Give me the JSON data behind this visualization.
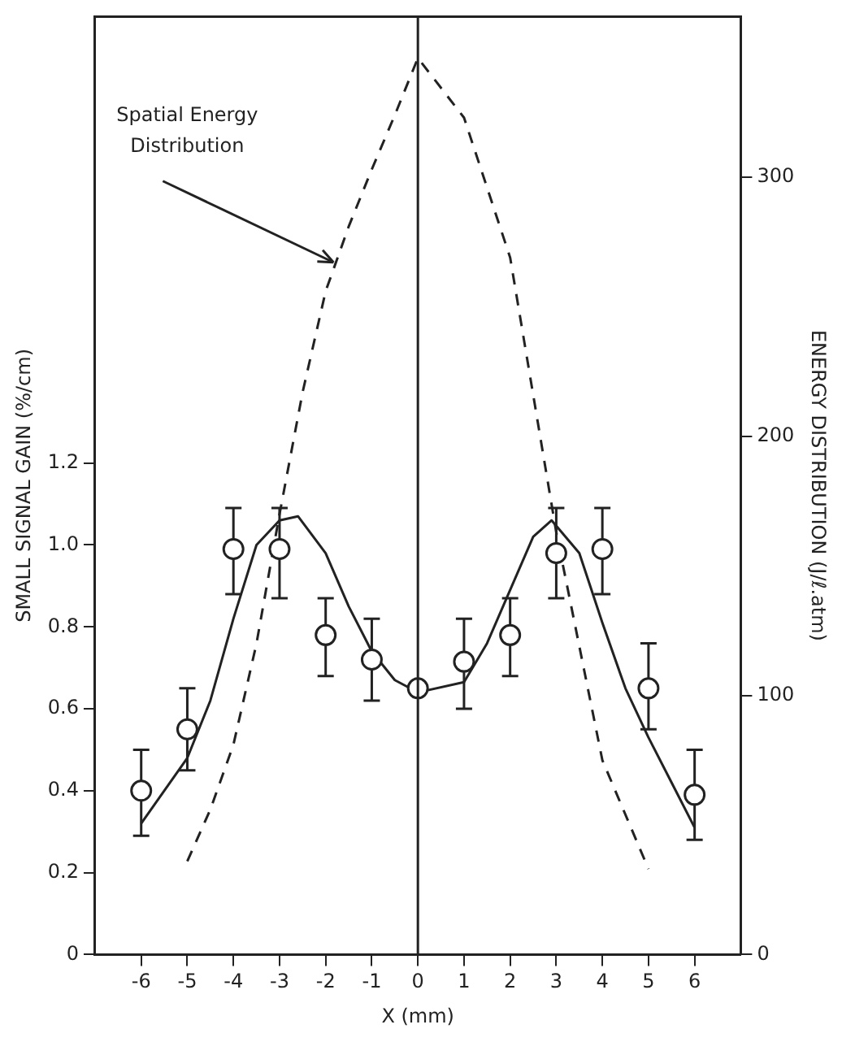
{
  "chart_data": {
    "type": "scatter",
    "xlabel": "X (mm)",
    "ylabel": "SMALL SIGNAL GAIN (%/cm)",
    "y2label": "ENERGY DISTRIBUTION (J/ℓ.atm)",
    "xlim": [
      -7,
      7
    ],
    "xticks": [
      -6,
      -5,
      -4,
      -3,
      -2,
      -1,
      0,
      1,
      2,
      3,
      4,
      5,
      6
    ],
    "ylim": [
      0,
      2.29
    ],
    "yticks": [
      0,
      0.2,
      0.4,
      0.6,
      0.8,
      {
        "value": 1,
        "label": "1.0"
      },
      1.2
    ],
    "y2lim": [
      0,
      362
    ],
    "y2ticks": [
      0,
      100,
      200,
      300
    ],
    "grid": false,
    "legend": false,
    "series": [
      {
        "type": "scatter",
        "color": "#222222",
        "marker": "circle",
        "x": [
          -6,
          -5,
          -4,
          -3,
          -2,
          -1,
          0,
          1,
          2,
          3,
          4,
          5,
          6
        ],
        "values": [
          0.4,
          0.55,
          0.99,
          0.99,
          0.78,
          0.72,
          0.65,
          0.715,
          0.78,
          0.98,
          0.99,
          0.65,
          0.39
        ],
        "errors": [
          [
            0.29,
            0.5
          ],
          [
            0.45,
            0.65
          ],
          [
            0.88,
            1.09
          ],
          [
            0.87,
            1.09
          ],
          [
            0.68,
            0.87
          ],
          [
            0.62,
            0.82
          ],
          null,
          [
            0.6,
            0.82
          ],
          [
            0.68,
            0.87
          ],
          [
            0.87,
            1.09
          ],
          [
            0.88,
            1.09
          ],
          [
            0.55,
            0.76
          ],
          [
            0.28,
            0.5
          ]
        ]
      },
      {
        "type": "line",
        "color": "#222222",
        "marker": "none",
        "line_style": "solid",
        "x": [
          -6,
          -5,
          -4.5,
          -4,
          -3.5,
          -3,
          -2.6,
          -2,
          -1.5,
          -1,
          -0.5,
          0,
          1,
          1.5,
          2,
          2.5,
          2.9,
          3.5,
          4,
          4.5,
          5,
          5.5,
          6
        ],
        "values": [
          0.32,
          0.48,
          0.62,
          0.82,
          1.0,
          1.06,
          1.07,
          0.98,
          0.85,
          0.74,
          0.67,
          0.64,
          0.665,
          0.76,
          0.89,
          1.02,
          1.06,
          0.98,
          0.81,
          0.65,
          0.53,
          0.42,
          0.31
        ]
      },
      {
        "type": "line",
        "color": "#222222",
        "marker": "none",
        "line_style": "dashed",
        "axis": "y2",
        "x": [
          -5,
          -4.5,
          -4,
          -3.5,
          -3,
          -2.5,
          -2,
          -1.5,
          -1,
          -0.5,
          0,
          1,
          2,
          3,
          4,
          5
        ],
        "values": [
          36,
          56,
          81,
          120,
          170,
          217,
          256,
          281,
          303,
          324,
          346,
          323,
          269,
          163,
          75,
          33
        ]
      }
    ],
    "ref_lines": [
      {
        "axis": "x",
        "value": 0,
        "color": "#222222",
        "line_style": "solid"
      }
    ],
    "annotations": [
      {
        "text": "Spatial Energy\nDistribution",
        "x": -1.83,
        "y": 1.69
      }
    ]
  }
}
